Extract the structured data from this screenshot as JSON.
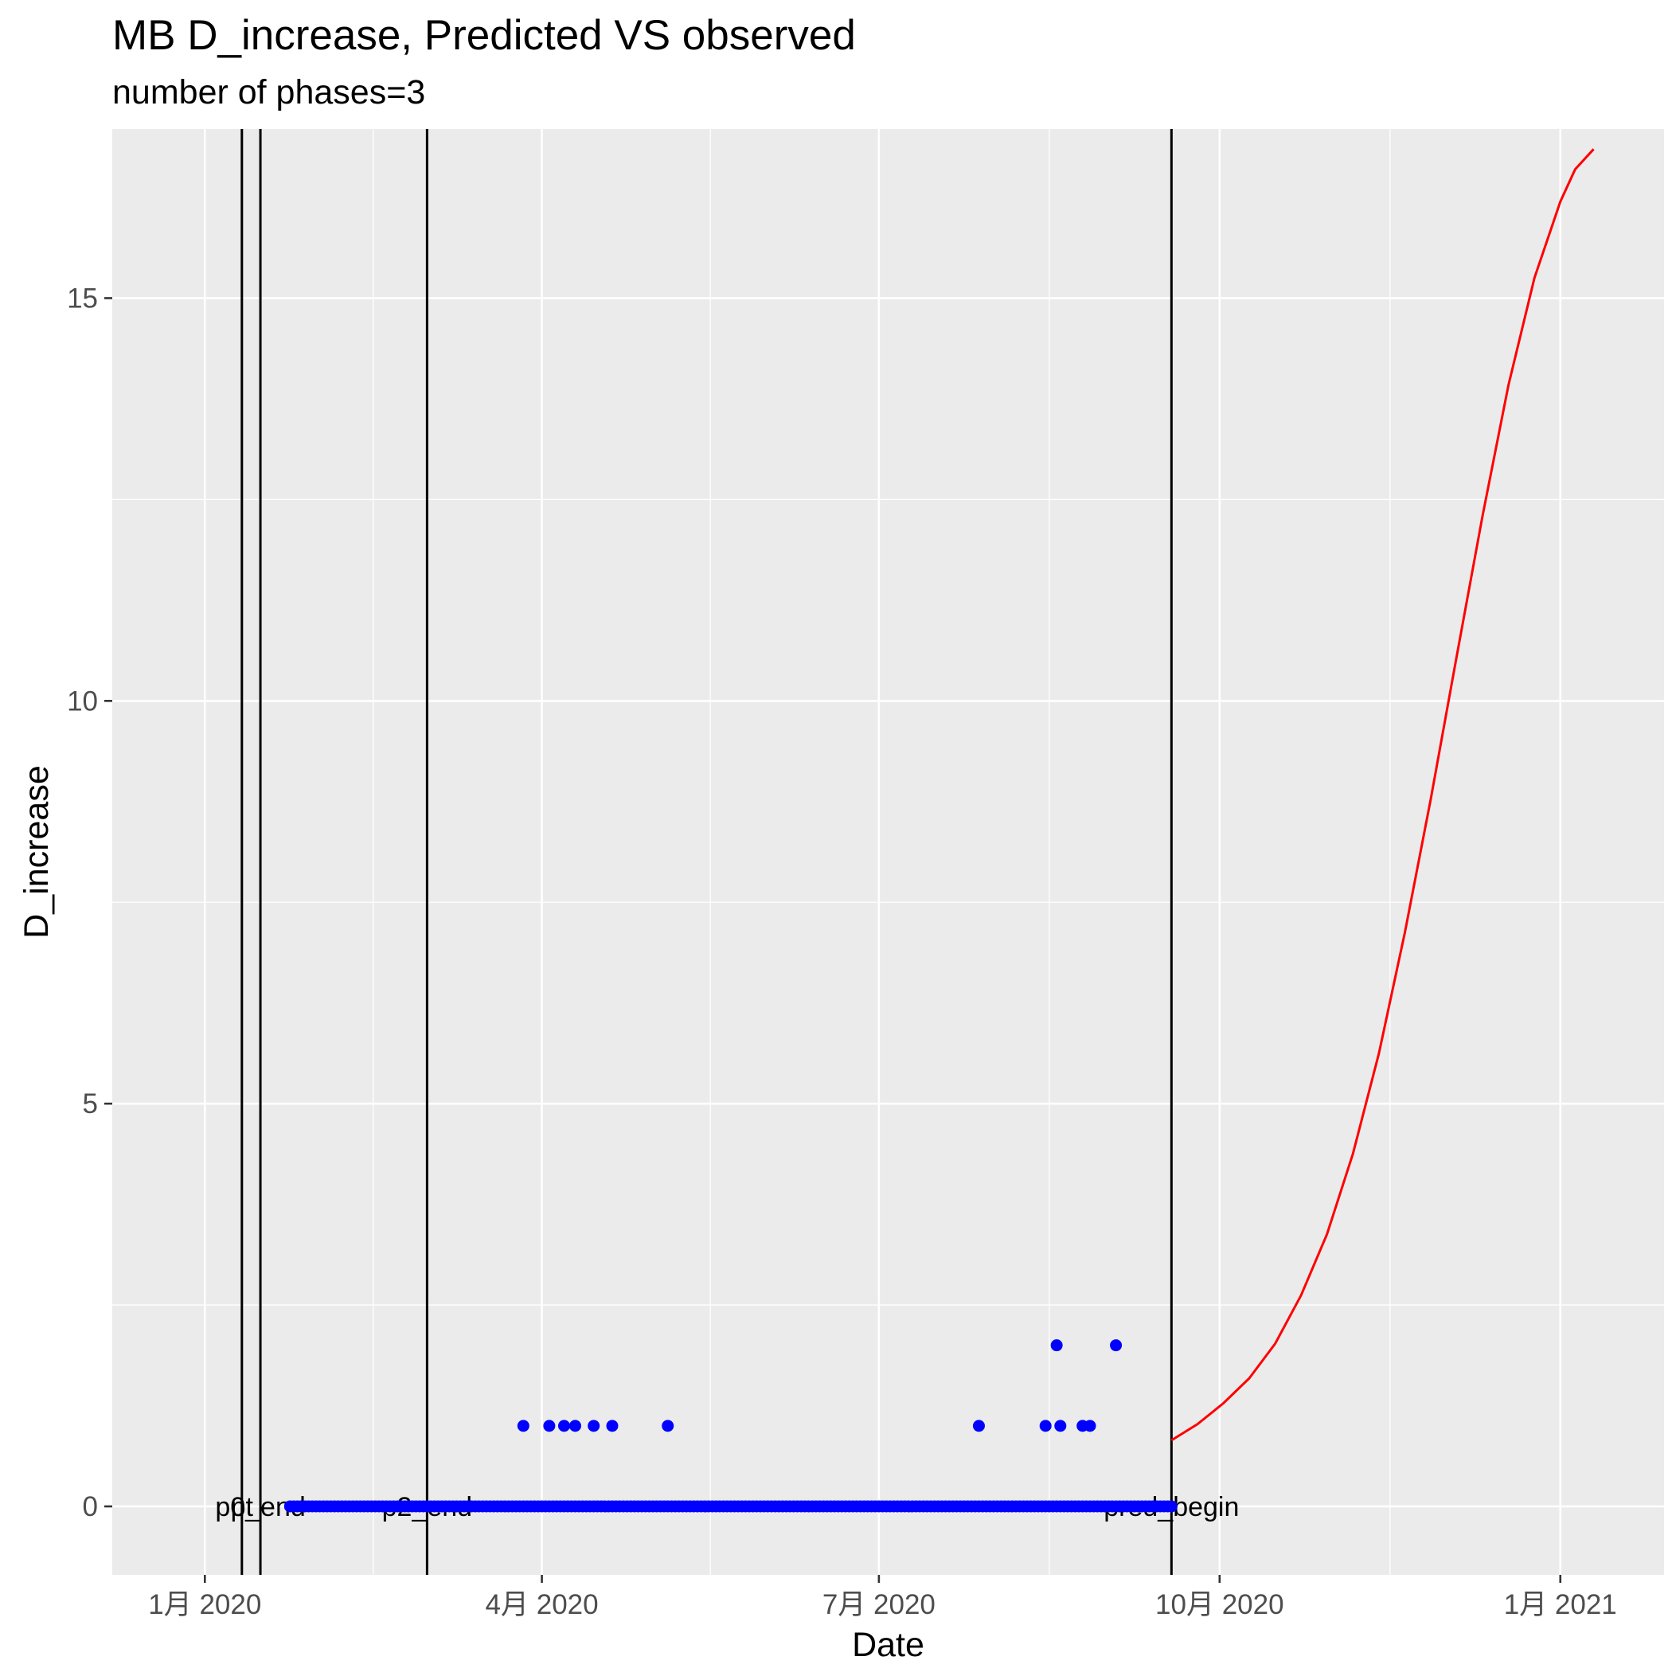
{
  "chart_data": {
    "type": "scatter",
    "title": "MB D_increase, Predicted VS observed",
    "subtitle": "number of phases=3",
    "xlabel": "Date",
    "ylabel": "D_increase",
    "xlim": [
      "2019-12-07",
      "2021-01-29"
    ],
    "ylim": [
      -0.85,
      17.1
    ],
    "grid": true,
    "background": "#ebebeb",
    "x_ticks": [
      {
        "date": "2020-01-01",
        "label": "1月 2020"
      },
      {
        "date": "2020-04-01",
        "label": "4月 2020"
      },
      {
        "date": "2020-07-01",
        "label": "7月 2020"
      },
      {
        "date": "2020-10-01",
        "label": "10月 2020"
      },
      {
        "date": "2021-01-01",
        "label": "1月 2021"
      }
    ],
    "y_ticks": [
      0,
      5,
      10,
      15
    ],
    "vertical_lines": [
      {
        "date": "2020-01-11",
        "label": "pt"
      },
      {
        "date": "2020-01-16",
        "label": "p0_end"
      },
      {
        "date": "2020-03-01",
        "label": "p2_end"
      },
      {
        "date": "2020-09-18",
        "label": "pred_begin"
      }
    ],
    "series": [
      {
        "kind": "points",
        "color": "#0000ff",
        "zero_range": [
          "2020-01-24",
          "2020-09-18"
        ],
        "nonzero": [
          {
            "x": "2020-03-27",
            "y": 1
          },
          {
            "x": "2020-04-03",
            "y": 1
          },
          {
            "x": "2020-04-07",
            "y": 1
          },
          {
            "x": "2020-04-10",
            "y": 1
          },
          {
            "x": "2020-04-15",
            "y": 1
          },
          {
            "x": "2020-04-20",
            "y": 1
          },
          {
            "x": "2020-05-05",
            "y": 1
          },
          {
            "x": "2020-07-28",
            "y": 1
          },
          {
            "x": "2020-08-15",
            "y": 1
          },
          {
            "x": "2020-08-19",
            "y": 1
          },
          {
            "x": "2020-08-25",
            "y": 1
          },
          {
            "x": "2020-08-27",
            "y": 1
          },
          {
            "x": "2020-08-18",
            "y": 2
          },
          {
            "x": "2020-09-03",
            "y": 2
          }
        ]
      },
      {
        "kind": "line",
        "color": "#ff0000",
        "points": [
          {
            "x": "2020-09-18",
            "y": 0.82
          },
          {
            "x": "2020-09-25",
            "y": 1.02
          },
          {
            "x": "2020-10-02",
            "y": 1.28
          },
          {
            "x": "2020-10-09",
            "y": 1.59
          },
          {
            "x": "2020-10-16",
            "y": 2.02
          },
          {
            "x": "2020-10-23",
            "y": 2.62
          },
          {
            "x": "2020-10-30",
            "y": 3.38
          },
          {
            "x": "2020-11-06",
            "y": 4.38
          },
          {
            "x": "2020-11-13",
            "y": 5.62
          },
          {
            "x": "2020-11-20",
            "y": 7.12
          },
          {
            "x": "2020-11-27",
            "y": 8.78
          },
          {
            "x": "2020-12-04",
            "y": 10.55
          },
          {
            "x": "2020-12-11",
            "y": 12.3
          },
          {
            "x": "2020-12-18",
            "y": 13.92
          },
          {
            "x": "2020-12-25",
            "y": 15.25
          },
          {
            "x": "2021-01-01",
            "y": 16.2
          },
          {
            "x": "2021-01-05",
            "y": 16.6
          },
          {
            "x": "2021-01-10",
            "y": 16.85
          }
        ]
      }
    ]
  }
}
